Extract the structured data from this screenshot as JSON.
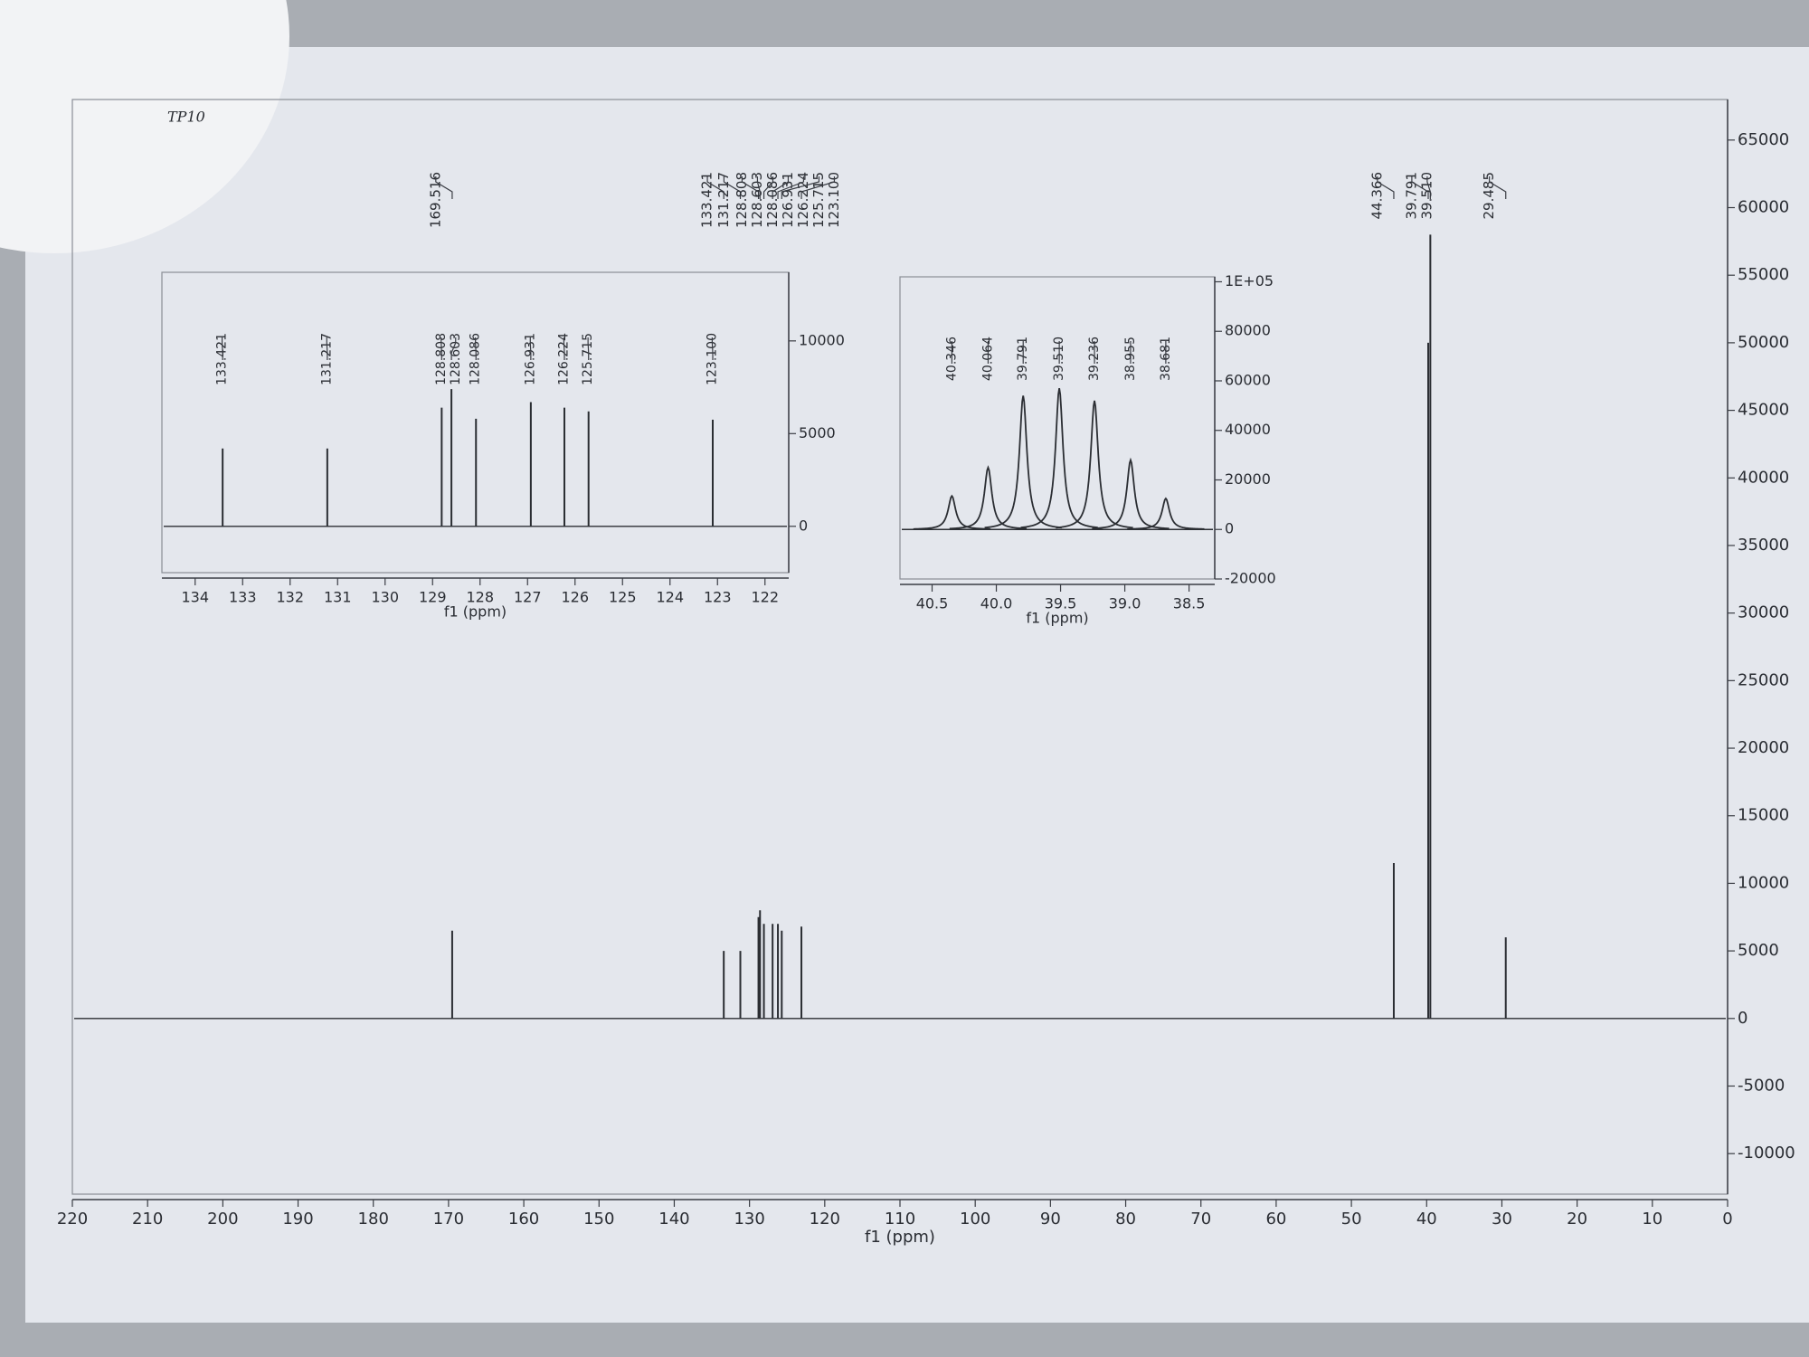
{
  "chart_data": [
    {
      "type": "stick",
      "title": "TP10",
      "x_label": "f1 (ppm)",
      "color": "#2b2e33",
      "x": [
        169.516,
        133.421,
        131.217,
        128.808,
        128.603,
        128.086,
        126.931,
        126.224,
        125.715,
        123.1,
        44.366,
        39.791,
        39.51,
        29.485
      ],
      "x_labels": [
        "169.516",
        "133.421",
        "131.217",
        "128.808",
        "128.603",
        "128.086",
        "126.931",
        "126.224",
        "125.715",
        "123.100",
        "44.366",
        "39.791",
        "39.510",
        "29.485"
      ],
      "values": [
        6500,
        5000,
        5000,
        7500,
        8000,
        7000,
        7000,
        7000,
        6500,
        6800,
        11500,
        50000,
        58000,
        6000
      ],
      "xlim": [
        220,
        0
      ],
      "xticks": [
        220,
        210,
        200,
        190,
        180,
        170,
        160,
        150,
        140,
        130,
        120,
        110,
        100,
        90,
        80,
        70,
        60,
        50,
        40,
        30,
        20,
        10,
        0
      ],
      "ylim": [
        -13000,
        68000
      ],
      "yticks": [
        65000,
        60000,
        55000,
        50000,
        45000,
        40000,
        35000,
        30000,
        25000,
        20000,
        15000,
        10000,
        5000,
        0,
        -5000,
        -10000
      ]
    },
    {
      "type": "stick",
      "x_label": "f1 (ppm)",
      "color": "#2b2e33",
      "x": [
        133.421,
        131.217,
        128.808,
        128.603,
        128.086,
        126.931,
        126.224,
        125.715,
        123.1
      ],
      "x_labels": [
        "133.421",
        "131.217",
        "128.808",
        "128.603",
        "128.086",
        "126.931",
        "126.224",
        "125.715",
        "123.100"
      ],
      "values": [
        4200,
        4200,
        6400,
        7400,
        5800,
        6700,
        6400,
        6200,
        5750
      ],
      "xlim": [
        134.7,
        121.5
      ],
      "xticks": [
        134,
        133,
        132,
        131,
        130,
        129,
        128,
        127,
        126,
        125,
        124,
        123,
        122
      ],
      "ylim": [
        -2500,
        13700
      ],
      "yticks": [
        0,
        5000,
        10000
      ]
    },
    {
      "type": "lorentzian",
      "x_label": "f1 (ppm)",
      "color": "#2b2e33",
      "x": [
        40.346,
        40.064,
        39.791,
        39.51,
        39.236,
        38.955,
        38.681
      ],
      "x_labels": [
        "40.346",
        "40.064",
        "39.791",
        "39.510",
        "39.236",
        "38.955",
        "38.681"
      ],
      "values": [
        13500,
        25000,
        54000,
        57000,
        52000,
        28000,
        12500
      ],
      "xlim": [
        40.75,
        38.3
      ],
      "xticks": [
        40.5,
        {
          "value": 40,
          "label": "40.0"
        },
        39.5,
        {
          "value": 39,
          "label": "39.0"
        },
        38.5
      ],
      "ylim": [
        -20000,
        102000
      ],
      "yticks": [
        {
          "value": 100000,
          "label": "1E+05"
        },
        80000,
        60000,
        40000,
        20000,
        0,
        -20000
      ]
    }
  ]
}
